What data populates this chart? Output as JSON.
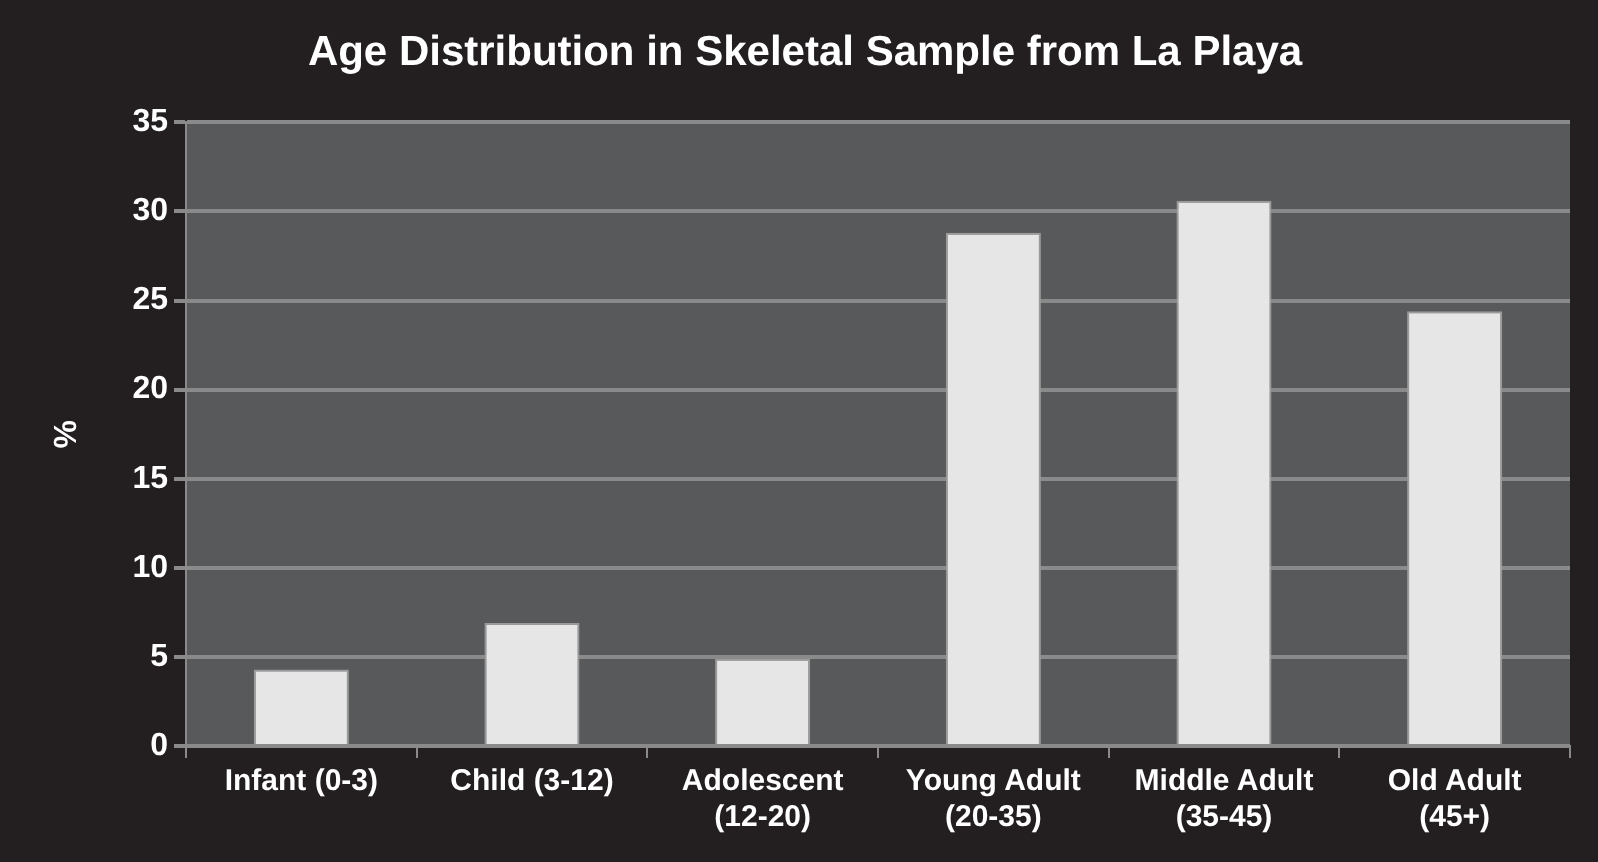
{
  "chart_data": {
    "type": "bar",
    "title": "Age Distribution in Skeletal Sample from La Playa",
    "ylabel": "%",
    "categories": [
      "Infant (0-3)",
      "Child (3-12)",
      "Adolescent (12-20)",
      "Young Adult (20-35)",
      "Middle Adult (35-45)",
      "Old Adult (45+)"
    ],
    "values": [
      4.3,
      6.9,
      4.9,
      28.8,
      30.6,
      24.4
    ],
    "color": "#e6e6e6",
    "ylim": [
      0,
      35
    ],
    "yticks": [
      0,
      5,
      10,
      15,
      20,
      25,
      30,
      35
    ],
    "grid": "y"
  }
}
